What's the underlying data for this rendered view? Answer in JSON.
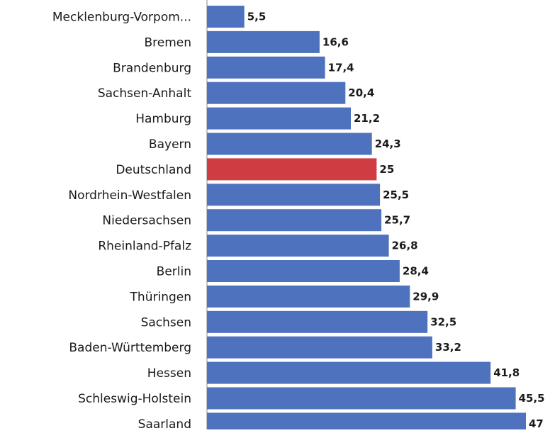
{
  "chart_data": {
    "type": "bar",
    "orientation": "horizontal",
    "categories": [
      "Mecklenburg-Vorpom...",
      "Bremen",
      "Brandenburg",
      "Sachsen-Anhalt",
      "Hamburg",
      "Bayern",
      "Deutschland",
      "Nordrhein-Westfalen",
      "Niedersachsen",
      "Rheinland-Pfalz",
      "Berlin",
      "Thüringen",
      "Sachsen",
      "Baden-Württemberg",
      "Hessen",
      "Schleswig-Holstein",
      "Saarland"
    ],
    "values": [
      5.5,
      16.6,
      17.4,
      20.4,
      21.2,
      24.3,
      25,
      25.5,
      25.7,
      26.8,
      28.4,
      29.9,
      32.5,
      33.2,
      41.8,
      45.5,
      47
    ],
    "value_labels": [
      "5,5",
      "16,6",
      "17,4",
      "20,4",
      "21,2",
      "24,3",
      "25",
      "25,5",
      "25,7",
      "26,8",
      "28,4",
      "29,9",
      "32,5",
      "33,2",
      "41,8",
      "45,5",
      "47"
    ],
    "highlight_category": "Deutschland",
    "xlim": [
      0,
      47
    ],
    "grid": false,
    "legend": "none"
  },
  "colors": {
    "bar": "#4f72bf",
    "highlight": "#cf3d43",
    "axis": "#888888"
  }
}
